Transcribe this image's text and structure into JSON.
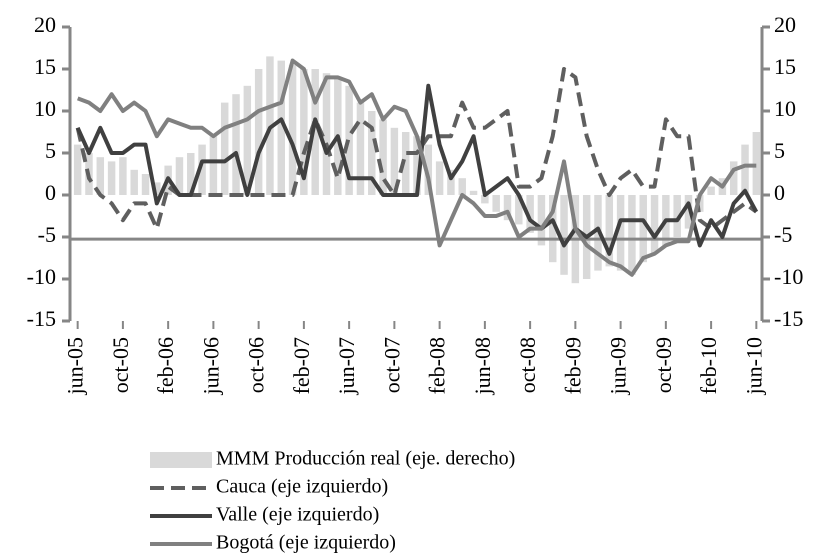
{
  "chart_data": {
    "type": "combo",
    "categories": [
      "jun-05",
      null,
      null,
      null,
      "oct-05",
      null,
      null,
      null,
      "feb-06",
      null,
      null,
      null,
      "jun-06",
      null,
      null,
      null,
      "oct-06",
      null,
      null,
      null,
      "feb-07",
      null,
      null,
      null,
      "jun-07",
      null,
      null,
      null,
      "oct-07",
      null,
      null,
      null,
      "feb-08",
      null,
      null,
      null,
      "jun-08",
      null,
      null,
      null,
      "oct-08",
      null,
      null,
      null,
      "feb-09",
      null,
      null,
      null,
      "jun-09",
      null,
      null,
      null,
      "oct-09",
      null,
      null,
      null,
      "feb-10",
      null,
      null,
      null,
      "jun-10"
    ],
    "series": [
      {
        "name": "MMM Producción real (eje. derecho)",
        "type": "bar",
        "axis": "y2",
        "color": "#d9d9d9",
        "values": [
          6,
          5,
          4.5,
          4,
          4.5,
          3,
          2.5,
          1.5,
          3.5,
          4.5,
          5,
          6,
          7,
          11,
          12,
          13,
          15,
          16.5,
          16,
          15.5,
          15,
          15,
          14.5,
          14,
          13,
          11,
          10,
          9,
          8,
          7.5,
          7,
          6,
          4,
          3,
          2,
          0.5,
          -1,
          -2,
          -3,
          -3.5,
          -4.5,
          -6,
          -8,
          -9.5,
          -10.5,
          -10,
          -9,
          -8.5,
          -9,
          -9.5,
          -8,
          -7,
          -6,
          -5,
          -4,
          -2,
          1,
          2,
          4,
          6,
          7.5
        ]
      },
      {
        "name": "Cauca (eje izquierdo)",
        "type": "line",
        "dashed": true,
        "color": "#5f5f5f",
        "values": [
          8,
          2,
          0,
          -1,
          -3,
          -1,
          -1,
          -4,
          1,
          0,
          0,
          0,
          0,
          0,
          0,
          0,
          0,
          0,
          0,
          0,
          5,
          9,
          6,
          2,
          7,
          9,
          8,
          2,
          0,
          5,
          5,
          7,
          7,
          7,
          11,
          8,
          8,
          9,
          10,
          1,
          1,
          2,
          7,
          15,
          14,
          7,
          3,
          0,
          2,
          3,
          1,
          1,
          9,
          7,
          7,
          -3,
          -4,
          -3,
          -2,
          -1,
          -2
        ]
      },
      {
        "name": "Valle (eje izquierdo)",
        "type": "line",
        "dashed": false,
        "color": "#404040",
        "values": [
          8,
          5,
          8,
          5,
          5,
          6,
          6,
          -1,
          2,
          0,
          0,
          4,
          4,
          4,
          5,
          0,
          5,
          8,
          9,
          6,
          2,
          9,
          5,
          7,
          2,
          2,
          2,
          0,
          0,
          0,
          0,
          13,
          6,
          2,
          4,
          7,
          0,
          1,
          2,
          0,
          -3,
          -4,
          -3,
          -6,
          -4,
          -5,
          -4,
          -7,
          -3,
          -3,
          -3,
          -5,
          -3,
          -3,
          -1,
          -6,
          -3,
          -5,
          -1,
          0.5,
          -2
        ]
      },
      {
        "name": "Bogotá (eje izquierdo)",
        "type": "line",
        "dashed": false,
        "color": "#808080",
        "values": [
          11.5,
          11,
          10,
          12,
          10,
          11,
          10,
          7,
          9,
          8.5,
          8,
          8,
          7,
          8,
          8.5,
          9,
          10,
          10.5,
          11,
          16,
          15,
          11,
          14,
          14,
          13.5,
          11,
          12,
          9,
          10.5,
          10,
          7,
          2,
          -6,
          -3,
          0,
          -1,
          -2.5,
          -2.5,
          -2,
          -5,
          -4,
          -4,
          -2,
          4,
          -4,
          -6,
          -7,
          -8,
          -8.5,
          -9.5,
          -7.5,
          -7,
          -6,
          -5.5,
          -5.5,
          0,
          2,
          1,
          3,
          3.5,
          3.5
        ]
      }
    ],
    "ylim": [
      -15,
      20
    ],
    "yticks": [
      -15,
      -10,
      -5,
      0,
      5,
      10,
      15,
      20
    ],
    "y2lim": [
      -15,
      20
    ],
    "y2ticks": [
      -15,
      -10,
      -5,
      0,
      5,
      10,
      15,
      20
    ],
    "x_axis_crossing": -5.25,
    "legend": "bottom"
  }
}
